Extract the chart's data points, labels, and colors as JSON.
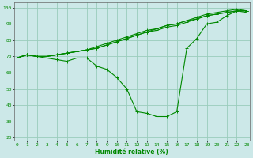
{
  "xlabel": "Humidité relative (%)",
  "xlim": [
    0,
    23
  ],
  "ylim": [
    18,
    103
  ],
  "yticks": [
    20,
    30,
    40,
    50,
    60,
    70,
    80,
    90,
    100
  ],
  "xticks": [
    0,
    1,
    2,
    3,
    4,
    5,
    6,
    7,
    8,
    9,
    10,
    11,
    12,
    13,
    14,
    15,
    16,
    17,
    18,
    19,
    20,
    21,
    22,
    23
  ],
  "background_color": "#cce8e8",
  "grid_color": "#99ccbb",
  "line_color": "#008800",
  "series": [
    [
      69,
      71,
      70,
      69,
      68,
      67,
      69,
      69,
      64,
      62,
      57,
      50,
      36,
      35,
      33,
      33,
      36,
      75,
      81,
      90,
      91,
      95,
      98,
      97
    ],
    [
      69,
      71,
      70,
      70,
      71,
      72,
      73,
      74,
      76,
      78,
      80,
      82,
      84,
      86,
      87,
      89,
      90,
      92,
      93,
      95,
      96,
      97,
      98,
      98
    ],
    [
      69,
      71,
      70,
      70,
      71,
      72,
      73,
      74,
      75,
      77,
      79,
      81,
      83,
      85,
      86,
      88,
      89,
      91,
      93,
      95,
      96,
      97,
      98,
      98
    ],
    [
      69,
      71,
      70,
      70,
      71,
      72,
      73,
      74,
      75,
      77,
      79,
      81,
      83,
      85,
      87,
      89,
      90,
      92,
      94,
      96,
      97,
      98,
      99,
      98
    ]
  ]
}
